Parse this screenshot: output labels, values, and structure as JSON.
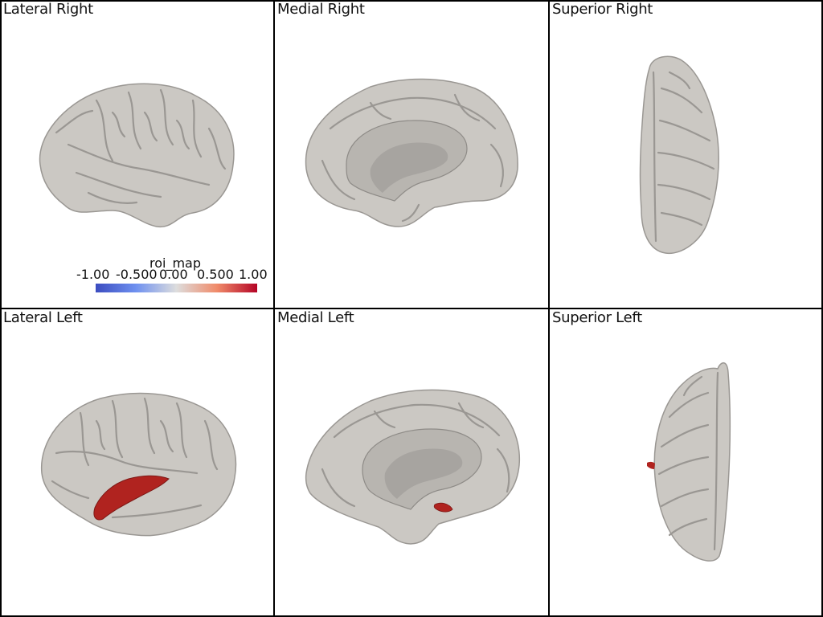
{
  "panels": [
    {
      "title": "Lateral Right",
      "view": "lateral-right",
      "roi": false
    },
    {
      "title": "Medial Right",
      "view": "medial-right",
      "roi": false
    },
    {
      "title": "Superior Right",
      "view": "superior-right",
      "roi": false
    },
    {
      "title": "Lateral Left",
      "view": "lateral-left",
      "roi": true
    },
    {
      "title": "Medial Left",
      "view": "medial-left",
      "roi": true
    },
    {
      "title": "Superior Left",
      "view": "superior-left",
      "roi": true
    }
  ],
  "colorbar": {
    "title": "roi_map",
    "ticks": [
      "-1.00",
      "-0.500",
      "0.00",
      "0.500",
      "1.00"
    ],
    "colormap": [
      "#3b4cc0",
      "#dddddd",
      "#b40426"
    ]
  },
  "colors": {
    "surface": "#c9c6c1",
    "surface_shadow": "#8f8c88",
    "roi": "#b0231f",
    "border": "#000000"
  }
}
